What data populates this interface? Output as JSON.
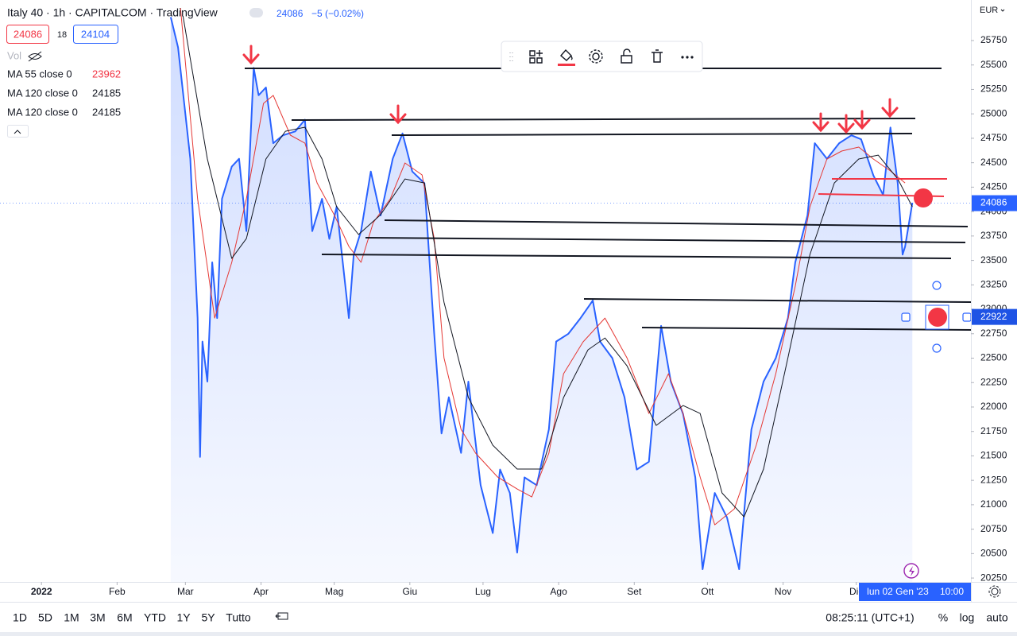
{
  "header": {
    "symbol": "Italy 40 · 1h · CAPITALCOM · TradingView",
    "last": 24086,
    "change": "−5 (−0.02%)",
    "bid": 24086,
    "spread": 18,
    "ask": 24104,
    "volume_label": "Vol"
  },
  "indicators": [
    {
      "name": "MA 55 close 0",
      "value": 23962
    },
    {
      "name": "MA 120 close 0",
      "value": 24185
    },
    {
      "name": "MA 120 close 0",
      "value": 24185
    }
  ],
  "chart_data": {
    "type": "line",
    "currency": "EUR",
    "xlim": [
      -17,
      381
    ],
    "xticks": [
      {
        "value": 0,
        "label": "2022"
      },
      {
        "value": 31,
        "label": "Feb"
      },
      {
        "value": 59,
        "label": "Mar"
      },
      {
        "value": 90,
        "label": "Apr"
      },
      {
        "value": 120,
        "label": "Mag"
      },
      {
        "value": 151,
        "label": "Giu"
      },
      {
        "value": 181,
        "label": "Lug"
      },
      {
        "value": 212,
        "label": "Ago"
      },
      {
        "value": 243,
        "label": "Set"
      },
      {
        "value": 273,
        "label": "Ott"
      },
      {
        "value": 304,
        "label": "Nov"
      },
      {
        "value": 334,
        "label": "Dic"
      }
    ],
    "ylim": [
      20210,
      26165
    ],
    "yticks": [
      20250,
      20500,
      20750,
      21000,
      21250,
      21500,
      21750,
      22000,
      22250,
      22500,
      22750,
      23000,
      23250,
      23500,
      23750,
      24000,
      24250,
      24500,
      24750,
      25000,
      25250,
      25500,
      25750
    ],
    "price_labels": [
      24086,
      22922
    ],
    "crosshair": {
      "date": "lun 02 Gen '23",
      "time": "10:00"
    },
    "series": [
      {
        "color": "#2962ff",
        "x": [
          53,
          56,
          61,
          64,
          65,
          66,
          68,
          70,
          72,
          74,
          78,
          81,
          84,
          87,
          89,
          92,
          95,
          99,
          104,
          108,
          111,
          115,
          118,
          121,
          126,
          128,
          131,
          135,
          139,
          144,
          148,
          152,
          157,
          161,
          164,
          167,
          172,
          175,
          180,
          185,
          188,
          192,
          195,
          198,
          203,
          208,
          211,
          216,
          221,
          226,
          229,
          234,
          239,
          244,
          249,
          254,
          258,
          263,
          268,
          271,
          276,
          281,
          286,
          291,
          296,
          301,
          306,
          309,
          314,
          317,
          322,
          327,
          332,
          336,
          341,
          345,
          348,
          351,
          353,
          354,
          357
        ],
        "values": [
          25990,
          25680,
          24540,
          22910,
          21490,
          22670,
          22260,
          23480,
          22910,
          24130,
          24460,
          24540,
          23800,
          25470,
          25190,
          25270,
          24700,
          24780,
          24820,
          24940,
          23800,
          24130,
          23720,
          24050,
          22910,
          23560,
          23800,
          24410,
          23960,
          24540,
          24800,
          24410,
          24290,
          22750,
          21730,
          22100,
          21530,
          22260,
          21200,
          20710,
          21360,
          21120,
          20510,
          21280,
          21200,
          21770,
          22670,
          22750,
          22910,
          23090,
          22670,
          22500,
          22100,
          21360,
          21440,
          22830,
          22260,
          21930,
          21280,
          20340,
          21120,
          20870,
          20340,
          21770,
          22260,
          22500,
          22910,
          23480,
          23960,
          24700,
          24540,
          24700,
          24780,
          24740,
          24370,
          24170,
          24860,
          24290,
          23560,
          23640,
          24090
        ]
      },
      {
        "color": "#e53935",
        "x": [
          57,
          64,
          71,
          78,
          84,
          91,
          95,
          102,
          108,
          113,
          120,
          126,
          131,
          136,
          143,
          149,
          156,
          161,
          165,
          172,
          178,
          187,
          195,
          201,
          208,
          214,
          222,
          231,
          240,
          249,
          257,
          263,
          270,
          276,
          284,
          293,
          301,
          309,
          315,
          322,
          328,
          335,
          341,
          348,
          354
        ],
        "values": [
          26084,
          24131,
          22910,
          23480,
          24131,
          25107,
          25189,
          24782,
          24700,
          24293,
          23968,
          23643,
          23480,
          23887,
          24131,
          24497,
          24375,
          23724,
          22503,
          21771,
          21527,
          21283,
          21161,
          21080,
          21527,
          22341,
          22666,
          22910,
          22503,
          21934,
          22341,
          21934,
          21283,
          20795,
          20958,
          21609,
          22341,
          23236,
          24049,
          24538,
          24619,
          24660,
          24538,
          24416,
          24293
        ]
      },
      {
        "color": "#131722",
        "x": [
          58,
          68,
          78,
          84,
          92,
          100,
          108,
          115,
          121,
          130,
          139,
          149,
          157,
          165,
          175,
          185,
          195,
          205,
          214,
          224,
          231,
          240,
          252,
          263,
          270,
          279,
          288,
          296,
          306,
          315,
          325,
          335,
          343,
          351,
          357
        ],
        "values": [
          26002,
          24538,
          23520,
          23724,
          24538,
          24822,
          24863,
          24538,
          24049,
          23765,
          23968,
          24334,
          24293,
          23073,
          22097,
          21609,
          21365,
          21365,
          22097,
          22585,
          22707,
          22422,
          21812,
          22015,
          21934,
          21120,
          20876,
          21365,
          22504,
          23561,
          24293,
          24538,
          24578,
          24334,
          24049
        ]
      }
    ]
  },
  "bottom_bar": {
    "ranges": [
      "1D",
      "5D",
      "1M",
      "3M",
      "6M",
      "YTD",
      "1Y",
      "5Y",
      "Tutto"
    ],
    "clock": "08:25:11 (UTC+1)",
    "options": [
      "%",
      "log",
      "auto"
    ]
  }
}
